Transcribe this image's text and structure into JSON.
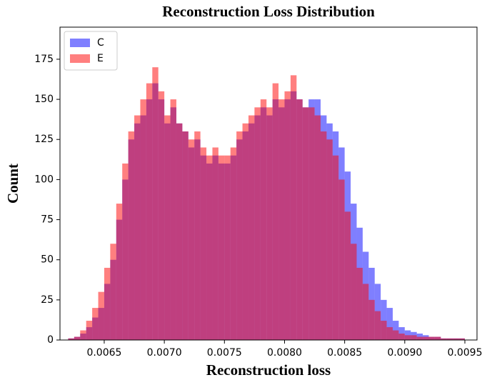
{
  "chart_data": {
    "type": "histogram",
    "title": "Reconstruction Loss Distribution",
    "xlabel": "Reconstruction loss",
    "ylabel": "Count",
    "bins": [
      0.0062,
      0.00625,
      0.0063,
      0.00635,
      0.0064,
      0.00645,
      0.0065,
      0.00655,
      0.0066,
      0.00665,
      0.0067,
      0.00675,
      0.0068,
      0.00685,
      0.0069,
      0.00695,
      0.007,
      0.00705,
      0.0071,
      0.00715,
      0.0072,
      0.00725,
      0.0073,
      0.00735,
      0.0074,
      0.00745,
      0.0075,
      0.00755,
      0.0076,
      0.00765,
      0.0077,
      0.00775,
      0.0078,
      0.00785,
      0.0079,
      0.00795,
      0.008,
      0.00805,
      0.0081,
      0.00815,
      0.0082,
      0.00825,
      0.0083,
      0.00835,
      0.0084,
      0.00845,
      0.0085,
      0.00855,
      0.0086,
      0.00865,
      0.0087,
      0.00875,
      0.0088,
      0.00885,
      0.0089,
      0.00895,
      0.009,
      0.00905,
      0.0091,
      0.00915,
      0.0092,
      0.00925,
      0.0093,
      0.00935,
      0.0094,
      0.00945,
      0.0095
    ],
    "series": [
      {
        "name": "C",
        "color": "#0000ff",
        "values": [
          1,
          2,
          4,
          8,
          14,
          20,
          35,
          50,
          75,
          100,
          125,
          135,
          140,
          150,
          160,
          150,
          135,
          145,
          135,
          130,
          120,
          125,
          115,
          110,
          115,
          110,
          110,
          115,
          125,
          130,
          135,
          140,
          145,
          140,
          150,
          145,
          150,
          155,
          150,
          145,
          150,
          150,
          140,
          135,
          130,
          120,
          105,
          85,
          70,
          55,
          45,
          35,
          25,
          20,
          12,
          8,
          6,
          5,
          4,
          3,
          2,
          2,
          1,
          1,
          1,
          1
        ]
      },
      {
        "name": "E",
        "color": "#ff0000",
        "values": [
          1,
          2,
          6,
          12,
          20,
          30,
          45,
          60,
          85,
          110,
          130,
          140,
          150,
          160,
          170,
          155,
          140,
          150,
          135,
          130,
          125,
          130,
          120,
          115,
          120,
          115,
          115,
          120,
          130,
          135,
          140,
          145,
          150,
          145,
          160,
          150,
          155,
          165,
          150,
          145,
          145,
          140,
          130,
          125,
          115,
          100,
          80,
          60,
          45,
          35,
          25,
          18,
          12,
          8,
          6,
          4,
          3,
          3,
          2,
          2,
          2,
          2,
          1,
          1,
          1,
          1
        ]
      }
    ],
    "xlim": [
      0.006132,
      0.009601
    ],
    "ylim": [
      0,
      195
    ],
    "xticks": [
      0.0065,
      {
        "value": 0.007,
        "label": "0.0070"
      },
      0.0075,
      {
        "value": 0.008,
        "label": "0.0080"
      },
      0.0085,
      {
        "value": 0.009,
        "label": "0.0090"
      },
      0.0095
    ],
    "yticks": [
      0,
      25,
      50,
      75,
      100,
      125,
      150,
      175
    ],
    "legend": "upper left"
  }
}
